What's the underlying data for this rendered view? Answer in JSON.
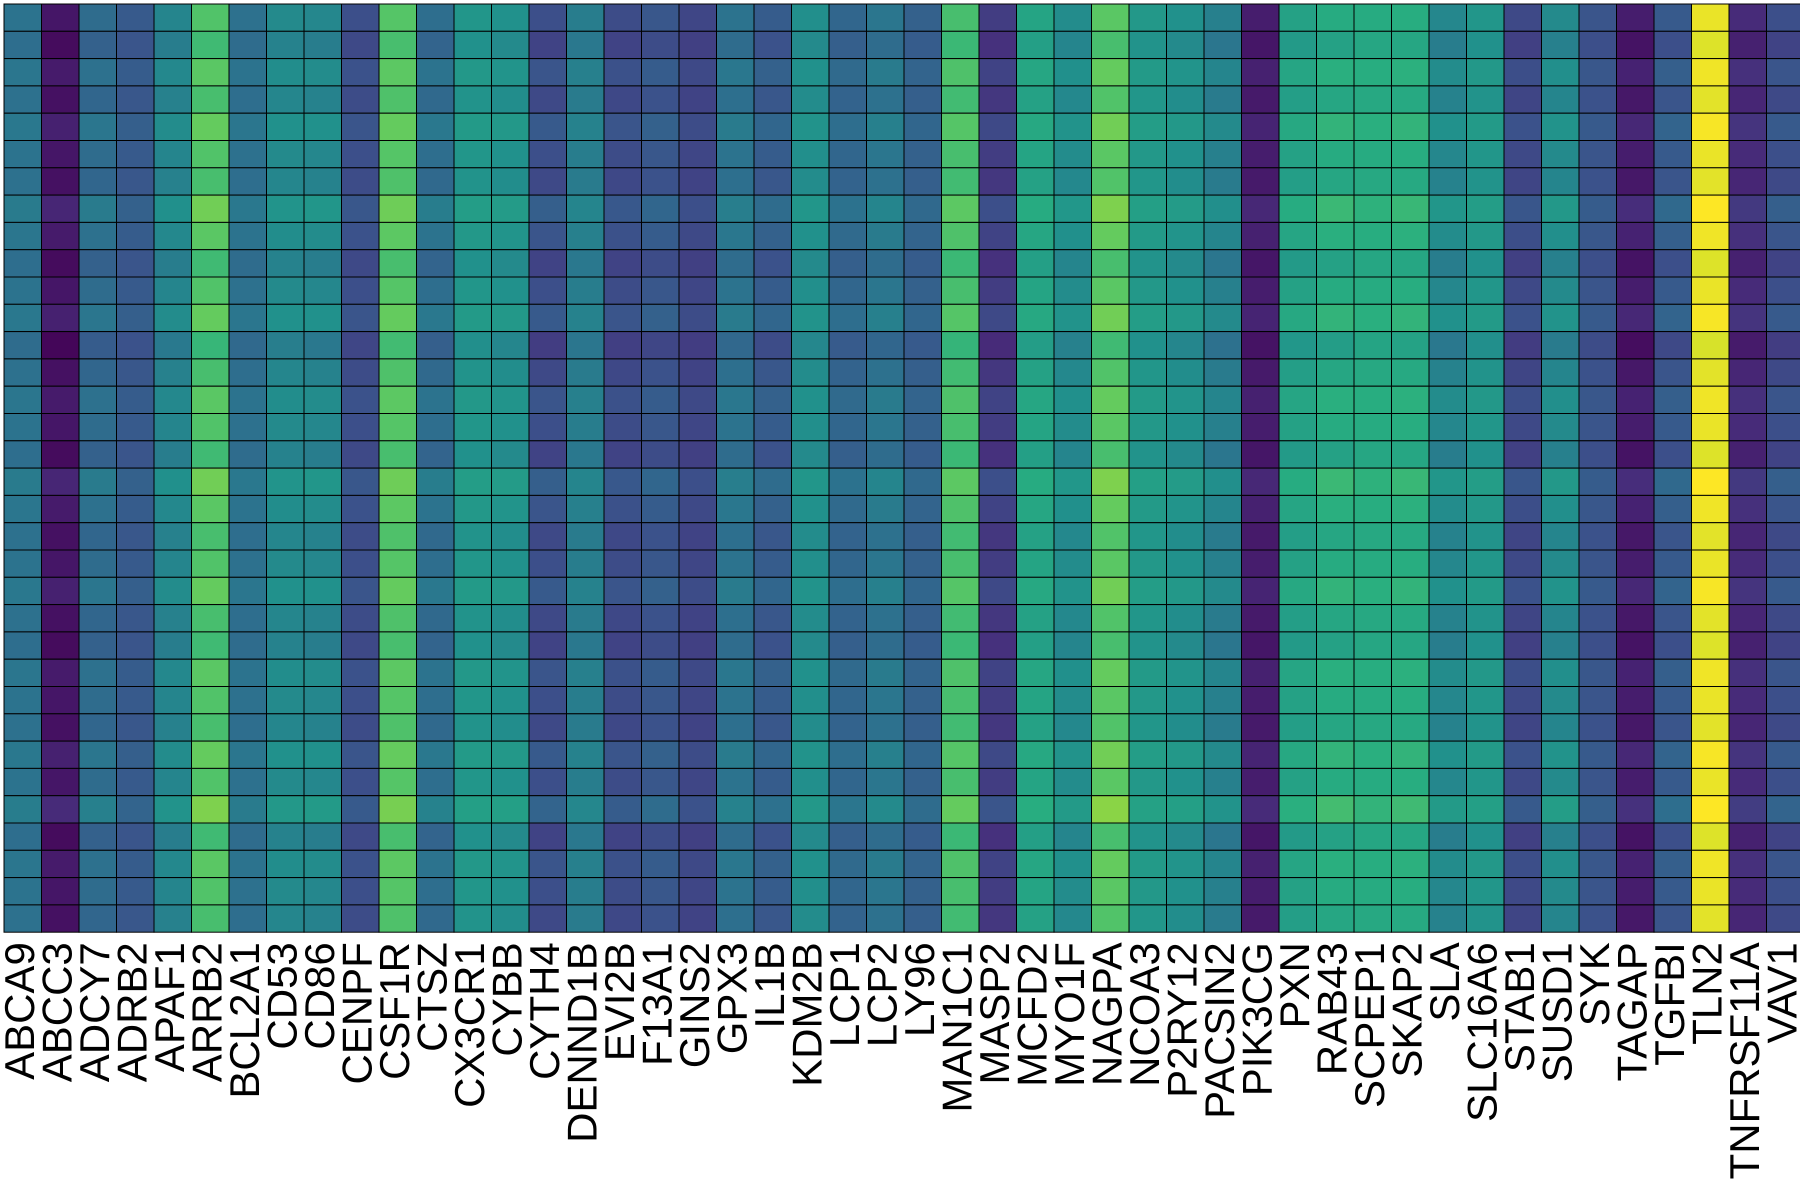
{
  "chart_data": {
    "type": "heatmap",
    "title": "",
    "xlabel": "",
    "ylabel": "",
    "legend": "none",
    "grid": true,
    "colormap": "viridis",
    "colormap_stops": [
      "#440154",
      "#472d7b",
      "#3b528b",
      "#2c728e",
      "#21918c",
      "#28ae80",
      "#5ec962",
      "#addc30",
      "#fde725"
    ],
    "value_range": [
      0,
      1
    ],
    "rows": 34,
    "columns": [
      "ABCA9",
      "ABCC3",
      "ADCY7",
      "ADRB2",
      "APAF1",
      "ARRB2",
      "BCL2A1",
      "CD53",
      "CD86",
      "CENPF",
      "CSF1R",
      "CTSZ",
      "CX3CR1",
      "CYBB",
      "CYTH4",
      "DENND1B",
      "EVI2B",
      "F13A1",
      "GINS2",
      "GPX3",
      "IL1B",
      "KDM2B",
      "LCP1",
      "LCP2",
      "LY96",
      "MAN1C1",
      "MASP2",
      "MCFD2",
      "MYO1F",
      "NAGPA",
      "NCOA3",
      "P2RY12",
      "PACSIN2",
      "PIK3CG",
      "PXN",
      "RAB43",
      "SCPEP1",
      "SKAP2",
      "SLA",
      "SLC16A6",
      "STAB1",
      "SUSD1",
      "SYK",
      "TAGAP",
      "TGFBI",
      "TLN2",
      "TNFRSF11A",
      "VAV1"
    ],
    "column_levels": [
      0.38,
      0.06,
      0.35,
      0.28,
      0.45,
      0.72,
      0.37,
      0.47,
      0.46,
      0.24,
      0.73,
      0.36,
      0.52,
      0.5,
      0.24,
      0.42,
      0.23,
      0.27,
      0.21,
      0.38,
      0.29,
      0.49,
      0.33,
      0.39,
      0.31,
      0.7,
      0.18,
      0.58,
      0.48,
      0.74,
      0.53,
      0.5,
      0.43,
      0.08,
      0.57,
      0.61,
      0.61,
      0.62,
      0.46,
      0.52,
      0.22,
      0.47,
      0.26,
      0.08,
      0.28,
      0.97,
      0.12,
      0.24
    ],
    "row_offsets": [
      0.0,
      -0.02,
      0.01,
      -0.01,
      0.02,
      0.0,
      -0.01,
      0.03,
      0.01,
      -0.02,
      0.0,
      0.02,
      -0.03,
      -0.01,
      0.01,
      0.0,
      -0.02,
      0.03,
      0.01,
      -0.01,
      0.0,
      0.02,
      -0.01,
      -0.02,
      0.01,
      0.0,
      -0.01,
      0.02,
      0.0,
      0.04,
      -0.02,
      0.01,
      0.0,
      -0.01
    ]
  }
}
